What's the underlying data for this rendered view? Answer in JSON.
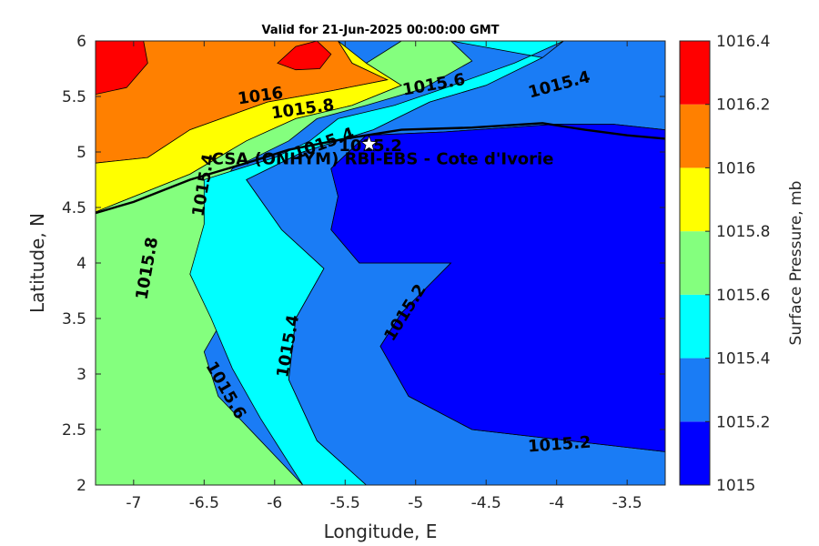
{
  "chart_data": {
    "type": "contour",
    "title": "Valid for 21-Jun-2025 00:00:00 GMT",
    "xlabel": "Longitude, E",
    "ylabel": "Latitude, N",
    "xlim": [
      -7.27,
      -3.23
    ],
    "ylim": [
      2,
      6
    ],
    "xticks": [
      -7,
      -6.5,
      -6,
      -5.5,
      -5,
      -4.5,
      -4,
      -3.5
    ],
    "xtick_labels": [
      "-7",
      "-6.5",
      "-6",
      "-5.5",
      "-5",
      "-4.5",
      "-4",
      "-3.5"
    ],
    "yticks": [
      2,
      2.5,
      3,
      3.5,
      4,
      4.5,
      5,
      5.5,
      6
    ],
    "ytick_labels": [
      "2",
      "2.5",
      "3",
      "3.5",
      "4",
      "4.5",
      "5",
      "5.5",
      "6"
    ],
    "colorbar": {
      "label": "Surface Pressure, mb",
      "levels": [
        1015,
        1015.2,
        1015.4,
        1015.6,
        1015.8,
        1016,
        1016.2,
        1016.4
      ],
      "level_labels": [
        "1015",
        "1015.2",
        "1015.4",
        "1015.6",
        "1015.8",
        "1016",
        "1016.2",
        "1016.4"
      ],
      "colors": [
        "#0000ff",
        "#1a7cf5",
        "#00ffff",
        "#84ff7e",
        "#ffff00",
        "#ff8000",
        "#ff0000",
        "#800000"
      ]
    },
    "contour_bands": [
      {
        "level": "1016-1016.2",
        "color": "#ff8000",
        "polygon": [
          [
            -7.27,
            6
          ],
          [
            -5.55,
            6
          ],
          [
            -5.45,
            5.8
          ],
          [
            -5.2,
            5.65
          ],
          [
            -5.6,
            5.55
          ],
          [
            -6.05,
            5.45
          ],
          [
            -6.6,
            5.2
          ],
          [
            -6.9,
            4.95
          ],
          [
            -7.27,
            4.9
          ]
        ]
      },
      {
        "level": "1015.8-1016",
        "color": "#ffff00",
        "polygon": [
          [
            -5.55,
            6
          ],
          [
            -5.35,
            5.8
          ],
          [
            -5.1,
            5.6
          ],
          [
            -5.45,
            5.42
          ],
          [
            -5.85,
            5.3
          ],
          [
            -6.2,
            5.1
          ],
          [
            -6.6,
            4.8
          ],
          [
            -7.27,
            4.46
          ],
          [
            -7.27,
            4.9
          ],
          [
            -6.9,
            4.95
          ],
          [
            -6.6,
            5.2
          ],
          [
            -6.05,
            5.45
          ],
          [
            -5.6,
            5.55
          ],
          [
            -5.2,
            5.65
          ],
          [
            -5.45,
            5.8
          ]
        ]
      },
      {
        "level": "1015.6-1015.8",
        "color": "#84ff7e",
        "polygon": [
          [
            -5.1,
            6
          ],
          [
            -4.75,
            6
          ],
          [
            -4.6,
            5.82
          ],
          [
            -4.95,
            5.57
          ],
          [
            -5.35,
            5.42
          ],
          [
            -5.7,
            5.3
          ],
          [
            -5.9,
            5.1
          ],
          [
            -6.3,
            4.85
          ],
          [
            -6.45,
            4.55
          ],
          [
            -6.3,
            4.25
          ],
          [
            -6.25,
            3.75
          ],
          [
            -6.5,
            3.2
          ],
          [
            -6.4,
            2.8
          ],
          [
            -6.1,
            2.4
          ],
          [
            -5.8,
            2
          ],
          [
            -7.27,
            2
          ],
          [
            -7.27,
            4.46
          ],
          [
            -6.6,
            4.8
          ],
          [
            -6.2,
            5.1
          ],
          [
            -5.85,
            5.3
          ],
          [
            -5.45,
            5.42
          ],
          [
            -5.1,
            5.6
          ],
          [
            -5.35,
            5.8
          ]
        ]
      },
      {
        "level": "1015.4-1015.6",
        "color": "#00ffff",
        "polygon": [
          [
            -4.75,
            6
          ],
          [
            -3.95,
            6
          ],
          [
            -4.3,
            5.8
          ],
          [
            -4.85,
            5.55
          ],
          [
            -5.15,
            5.42
          ],
          [
            -5.55,
            5.3
          ],
          [
            -5.75,
            5.1
          ],
          [
            -6.0,
            4.95
          ],
          [
            -6.5,
            4.75
          ],
          [
            -6.5,
            4.35
          ],
          [
            -6.6,
            3.9
          ],
          [
            -6.45,
            3.5
          ],
          [
            -6.3,
            3.05
          ],
          [
            -6.1,
            2.6
          ],
          [
            -5.95,
            2.3
          ],
          [
            -5.8,
            2
          ],
          [
            -5.35,
            2
          ],
          [
            -5.7,
            2.4
          ],
          [
            -5.9,
            2.95
          ],
          [
            -5.85,
            3.5
          ],
          [
            -5.65,
            3.95
          ],
          [
            -5.95,
            4.3
          ],
          [
            -6.2,
            4.75
          ],
          [
            -5.8,
            5.0
          ],
          [
            -5.3,
            5.2
          ],
          [
            -4.9,
            5.45
          ],
          [
            -4.5,
            5.6
          ],
          [
            -4.1,
            5.85
          ]
        ]
      },
      {
        "level": "1015.2-1015.4",
        "color": "#1a7cf5",
        "polygon": [
          [
            -3.95,
            6
          ],
          [
            -3.23,
            6
          ],
          [
            -3.23,
            5.2
          ],
          [
            -3.6,
            5.25
          ],
          [
            -4.0,
            5.25
          ],
          [
            -4.8,
            5.18
          ],
          [
            -5.35,
            5.15
          ],
          [
            -5.6,
            4.85
          ],
          [
            -5.55,
            4.6
          ],
          [
            -5.6,
            4.3
          ],
          [
            -5.4,
            4.0
          ],
          [
            -4.75,
            4.0
          ],
          [
            -5.1,
            3.55
          ],
          [
            -5.25,
            3.25
          ],
          [
            -5.05,
            2.8
          ],
          [
            -4.6,
            2.5
          ],
          [
            -3.23,
            2.3
          ],
          [
            -3.23,
            2
          ],
          [
            -5.35,
            2
          ],
          [
            -5.7,
            2.4
          ],
          [
            -5.9,
            2.95
          ],
          [
            -5.85,
            3.5
          ],
          [
            -5.65,
            3.95
          ],
          [
            -5.95,
            4.3
          ],
          [
            -6.2,
            4.75
          ],
          [
            -5.8,
            5.0
          ],
          [
            -5.3,
            5.2
          ],
          [
            -4.9,
            5.45
          ],
          [
            -4.5,
            5.6
          ],
          [
            -4.1,
            5.85
          ]
        ]
      },
      {
        "level": "1015-1015.2",
        "color": "#0000ff",
        "polygon": [
          [
            -3.23,
            5.2
          ],
          [
            -3.6,
            5.25
          ],
          [
            -4.0,
            5.25
          ],
          [
            -4.8,
            5.18
          ],
          [
            -5.35,
            5.15
          ],
          [
            -5.6,
            4.85
          ],
          [
            -5.55,
            4.6
          ],
          [
            -5.6,
            4.3
          ],
          [
            -5.4,
            4.0
          ],
          [
            -4.75,
            4.0
          ],
          [
            -5.1,
            3.55
          ],
          [
            -5.25,
            3.25
          ],
          [
            -5.05,
            2.8
          ],
          [
            -4.6,
            2.5
          ],
          [
            -3.23,
            2.3
          ]
        ]
      },
      {
        "level": "1016.2-1016.4",
        "color": "#ff0000",
        "polygon": [
          [
            -7.27,
            6
          ],
          [
            -6.93,
            6
          ],
          [
            -6.9,
            5.8
          ],
          [
            -7.05,
            5.58
          ],
          [
            -7.27,
            5.52
          ]
        ]
      },
      {
        "level": "1016.2-1016.4",
        "color": "#ff0000",
        "polygon": [
          [
            -5.98,
            5.8
          ],
          [
            -5.85,
            5.95
          ],
          [
            -5.7,
            6
          ],
          [
            -5.6,
            5.88
          ],
          [
            -5.68,
            5.75
          ],
          [
            -5.85,
            5.74
          ]
        ]
      }
    ],
    "coastline": [
      [
        -7.27,
        4.45
      ],
      [
        -7.0,
        4.55
      ],
      [
        -6.6,
        4.75
      ],
      [
        -6.2,
        4.9
      ],
      [
        -5.9,
        5.02
      ],
      [
        -5.5,
        5.12
      ],
      [
        -5.1,
        5.2
      ],
      [
        -4.6,
        5.22
      ],
      [
        -4.1,
        5.26
      ],
      [
        -3.8,
        5.2
      ],
      [
        -3.5,
        5.15
      ],
      [
        -3.23,
        5.12
      ]
    ],
    "contour_labels": [
      {
        "text": "1016",
        "lon": -6.1,
        "lat": 5.5,
        "angle": -8
      },
      {
        "text": "1015.8",
        "lon": -5.8,
        "lat": 5.38,
        "angle": -8
      },
      {
        "text": "1015.6",
        "lon": -4.87,
        "lat": 5.6,
        "angle": -10
      },
      {
        "text": "1015.4",
        "lon": -3.98,
        "lat": 5.6,
        "angle": -15
      },
      {
        "text": "1015.4",
        "lon": -5.65,
        "lat": 5.07,
        "angle": -20
      },
      {
        "text": "1015.2",
        "lon": -5.32,
        "lat": 5.05,
        "angle": 0
      },
      {
        "text": "1015.4",
        "lon": -6.5,
        "lat": 4.7,
        "angle": -80
      },
      {
        "text": "1015.8",
        "lon": -6.9,
        "lat": 3.95,
        "angle": -80
      },
      {
        "text": "1015.4",
        "lon": -5.9,
        "lat": 3.25,
        "angle": -80
      },
      {
        "text": "1015.6",
        "lon": -6.35,
        "lat": 2.85,
        "angle": 60
      },
      {
        "text": "1015.2",
        "lon": -5.07,
        "lat": 3.55,
        "angle": -58
      },
      {
        "text": "1015.2",
        "lon": -3.98,
        "lat": 2.36,
        "angle": -4
      }
    ],
    "site": {
      "label": "CSA (ONHYM) RBI-EBS  - Cote d'Ivorie",
      "lon": -5.33,
      "lat": 5.07
    }
  }
}
